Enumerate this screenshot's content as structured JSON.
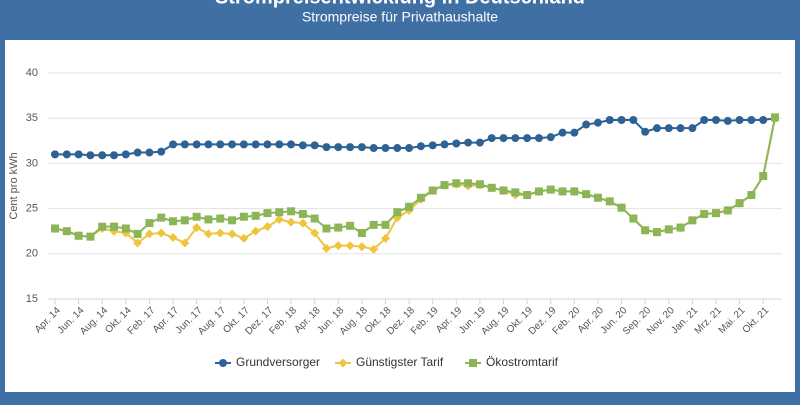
{
  "chart_data": {
    "type": "line",
    "title": "Strompreisentwicklung in Deutschland",
    "subtitle": "Strompreise für Privathaushalte",
    "y_label": "Cent pro kWh",
    "ylim": [
      15,
      40
    ],
    "yticks": [
      15,
      20,
      25,
      30,
      35,
      40
    ],
    "grid": true,
    "legend": "bottom",
    "categories": [
      "Apr. 14",
      null,
      "Jun. 14",
      null,
      "Aug. 14",
      null,
      "Okt. 14",
      null,
      "Feb. 17",
      null,
      "Apr. 17",
      null,
      "Jun. 17",
      null,
      "Aug. 17",
      null,
      "Okt. 17",
      null,
      "Dez. 17",
      null,
      "Feb. 18",
      null,
      "Apr. 18",
      null,
      "Jun. 18",
      null,
      "Aug. 18",
      null,
      "Okt. 18",
      null,
      "Dez. 18",
      null,
      "Feb. 19",
      null,
      "Apr. 19",
      null,
      "Jun. 19",
      null,
      "Aug. 19",
      null,
      "Okt. 19",
      null,
      "Dez. 19",
      null,
      "Feb. 20",
      null,
      "Apr. 20",
      null,
      "Jun. 20",
      null,
      "Sep. 20",
      null,
      "Nov. 20",
      null,
      "Jan. 21",
      null,
      "Mrz. 21",
      null,
      "Mai. 21",
      null,
      "Okt. 21",
      null
    ],
    "series": [
      {
        "name": "Grundversorger",
        "color": "#2e6294",
        "marker": "circle",
        "values": [
          31.0,
          31.0,
          31.0,
          30.9,
          30.9,
          30.9,
          31.0,
          31.2,
          31.2,
          31.3,
          32.1,
          32.1,
          32.1,
          32.1,
          32.1,
          32.1,
          32.1,
          32.1,
          32.1,
          32.1,
          32.1,
          32.0,
          32.0,
          31.8,
          31.8,
          31.8,
          31.8,
          31.7,
          31.7,
          31.7,
          31.7,
          31.9,
          32.0,
          32.1,
          32.2,
          32.3,
          32.3,
          32.8,
          32.8,
          32.8,
          32.8,
          32.8,
          32.9,
          33.4,
          33.4,
          34.3,
          34.5,
          34.8,
          34.8,
          34.8,
          33.5,
          33.9,
          33.9,
          33.9,
          33.9,
          34.8,
          34.8,
          34.7,
          34.8,
          34.8,
          34.8,
          35.0
        ]
      },
      {
        "name": "Günstigster Tarif",
        "color": "#f0c53e",
        "marker": "diamond",
        "values": [
          22.8,
          22.5,
          22.0,
          21.9,
          22.8,
          22.5,
          22.3,
          21.2,
          22.2,
          22.3,
          21.8,
          21.2,
          22.9,
          22.2,
          22.3,
          22.2,
          21.7,
          22.5,
          23.0,
          23.8,
          23.5,
          23.4,
          22.3,
          20.6,
          20.9,
          20.9,
          20.8,
          20.5,
          21.7,
          24.0,
          24.8,
          26.0,
          27.0,
          27.6,
          27.7,
          27.5,
          27.6,
          27.3,
          27.0,
          26.5,
          26.5,
          26.9,
          27.1,
          26.9,
          26.9,
          26.6,
          26.2,
          25.8,
          25.1,
          23.9,
          22.6,
          22.4,
          22.7,
          22.9,
          23.7,
          24.4,
          24.5,
          24.8,
          25.6,
          26.5,
          28.6,
          35.0
        ]
      },
      {
        "name": "Ökostromtarif",
        "color": "#8cb558",
        "marker": "square",
        "values": [
          22.8,
          22.5,
          22.0,
          21.9,
          23.0,
          23.0,
          22.8,
          22.2,
          23.4,
          24.0,
          23.6,
          23.7,
          24.1,
          23.8,
          23.9,
          23.7,
          24.1,
          24.2,
          24.5,
          24.6,
          24.7,
          24.4,
          23.9,
          22.8,
          22.9,
          23.1,
          22.3,
          23.2,
          23.2,
          24.6,
          25.2,
          26.2,
          27.0,
          27.6,
          27.8,
          27.8,
          27.7,
          27.3,
          27.0,
          26.8,
          26.5,
          26.9,
          27.1,
          26.9,
          26.9,
          26.6,
          26.2,
          25.8,
          25.1,
          23.9,
          22.6,
          22.4,
          22.7,
          22.9,
          23.7,
          24.4,
          24.5,
          24.8,
          25.6,
          26.5,
          28.6,
          35.1
        ]
      }
    ]
  }
}
